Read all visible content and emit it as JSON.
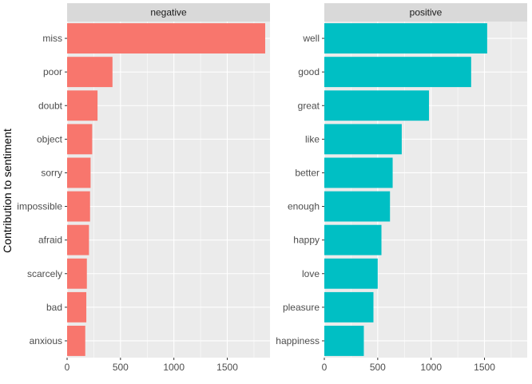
{
  "chart_data": {
    "type": "bar",
    "orientation": "horizontal",
    "ylabel": "Contribution to sentiment",
    "xlabel": "",
    "xlim": [
      0,
      1900
    ],
    "x_ticks": [
      0,
      500,
      1000,
      1500
    ],
    "x_tick_labels": [
      "0",
      "500",
      "1000",
      "1500"
    ],
    "grid": true,
    "legend": "none",
    "facets": [
      {
        "label": "negative",
        "color": "#F8766D",
        "categories": [
          "miss",
          "poor",
          "doubt",
          "object",
          "sorry",
          "impossible",
          "afraid",
          "scarcely",
          "bad",
          "anxious"
        ],
        "values": [
          1855,
          425,
          285,
          235,
          220,
          215,
          205,
          185,
          180,
          170
        ]
      },
      {
        "label": "positive",
        "color": "#00BFC4",
        "categories": [
          "well",
          "good",
          "great",
          "like",
          "better",
          "enough",
          "happy",
          "love",
          "pleasure",
          "happiness"
        ],
        "values": [
          1525,
          1375,
          980,
          725,
          640,
          615,
          535,
          500,
          460,
          370
        ]
      }
    ]
  }
}
